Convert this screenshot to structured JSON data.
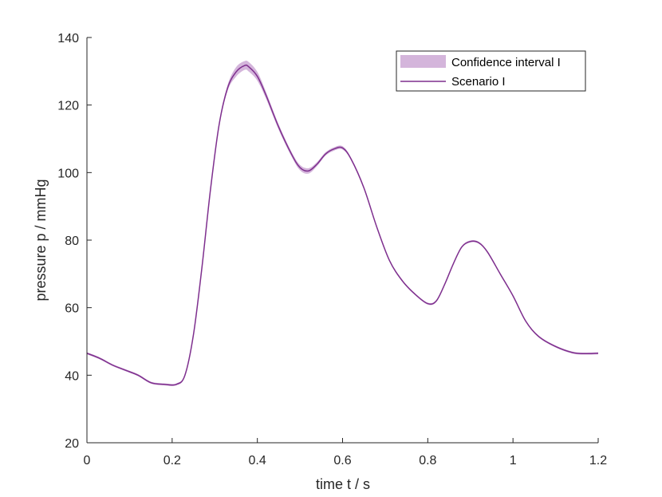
{
  "chart_data": {
    "type": "line",
    "title": "",
    "xlabel": "time t / s",
    "ylabel": "pressure p / mmHg",
    "xlim": [
      0,
      1.2
    ],
    "ylim": [
      20,
      140
    ],
    "xticks": [
      0,
      0.2,
      0.4,
      0.6,
      0.8,
      1,
      1.2
    ],
    "xtick_labels": [
      "0",
      "0.2",
      "0.4",
      "0.6",
      "0.8",
      "1",
      "1.2"
    ],
    "yticks": [
      20,
      40,
      60,
      80,
      100,
      120,
      140
    ],
    "ytick_labels": [
      "20",
      "40",
      "60",
      "80",
      "100",
      "120",
      "140"
    ],
    "grid": false,
    "legend": {
      "position": "top-right",
      "entries": [
        "Confidence interval I",
        "Scenario I"
      ]
    },
    "colors": {
      "line": "#7e2f8e",
      "band": "#d4b5db",
      "axis": "#262626"
    },
    "x": [
      0,
      0.03,
      0.06,
      0.09,
      0.12,
      0.15,
      0.18,
      0.21,
      0.23,
      0.25,
      0.27,
      0.29,
      0.31,
      0.33,
      0.35,
      0.37,
      0.38,
      0.4,
      0.42,
      0.45,
      0.48,
      0.5,
      0.52,
      0.54,
      0.56,
      0.58,
      0.6,
      0.62,
      0.65,
      0.68,
      0.71,
      0.74,
      0.77,
      0.8,
      0.82,
      0.84,
      0.86,
      0.88,
      0.9,
      0.92,
      0.94,
      0.97,
      1.0,
      1.03,
      1.06,
      1.1,
      1.14,
      1.17,
      1.2
    ],
    "series": [
      {
        "name": "Scenario I",
        "values": [
          46.5,
          45.0,
          43.0,
          41.5,
          40.0,
          37.8,
          37.3,
          37.3,
          40.0,
          52.0,
          72.0,
          95.0,
          114.0,
          125.0,
          129.8,
          131.7,
          131.3,
          128.5,
          123.0,
          113.5,
          105.5,
          101.5,
          100.5,
          102.5,
          105.5,
          107.0,
          107.3,
          104.0,
          95.5,
          84.0,
          74.0,
          68.0,
          64.0,
          61.2,
          62.0,
          67.0,
          73.0,
          78.0,
          79.6,
          79.2,
          76.5,
          70.0,
          63.5,
          56.0,
          51.5,
          48.5,
          46.7,
          46.4,
          46.5
        ]
      },
      {
        "name": "Confidence interval I",
        "upper": [
          46.8,
          45.3,
          43.3,
          41.8,
          40.3,
          38.1,
          37.6,
          37.6,
          40.3,
          52.3,
          72.4,
          95.5,
          114.7,
          125.9,
          131.2,
          133.0,
          132.7,
          129.8,
          124.0,
          114.3,
          106.2,
          102.3,
          101.3,
          103.1,
          106.0,
          107.5,
          107.8,
          104.4,
          95.9,
          84.3,
          74.3,
          68.3,
          64.3,
          61.5,
          62.3,
          67.3,
          73.3,
          78.3,
          79.9,
          79.5,
          76.8,
          70.3,
          63.8,
          56.3,
          51.8,
          48.8,
          47.0,
          46.7,
          46.8
        ],
        "lower": [
          46.2,
          44.7,
          42.7,
          41.2,
          39.7,
          37.5,
          37.0,
          37.0,
          39.7,
          51.7,
          71.6,
          94.5,
          113.3,
          124.1,
          128.4,
          130.4,
          129.9,
          127.2,
          122.0,
          112.7,
          104.8,
          100.7,
          99.7,
          101.9,
          105.0,
          106.5,
          106.8,
          103.6,
          95.1,
          83.7,
          73.7,
          67.7,
          63.7,
          60.9,
          61.7,
          66.7,
          72.7,
          77.7,
          79.3,
          78.9,
          76.2,
          69.7,
          63.2,
          55.7,
          51.2,
          48.2,
          46.4,
          46.1,
          46.2
        ]
      }
    ]
  }
}
